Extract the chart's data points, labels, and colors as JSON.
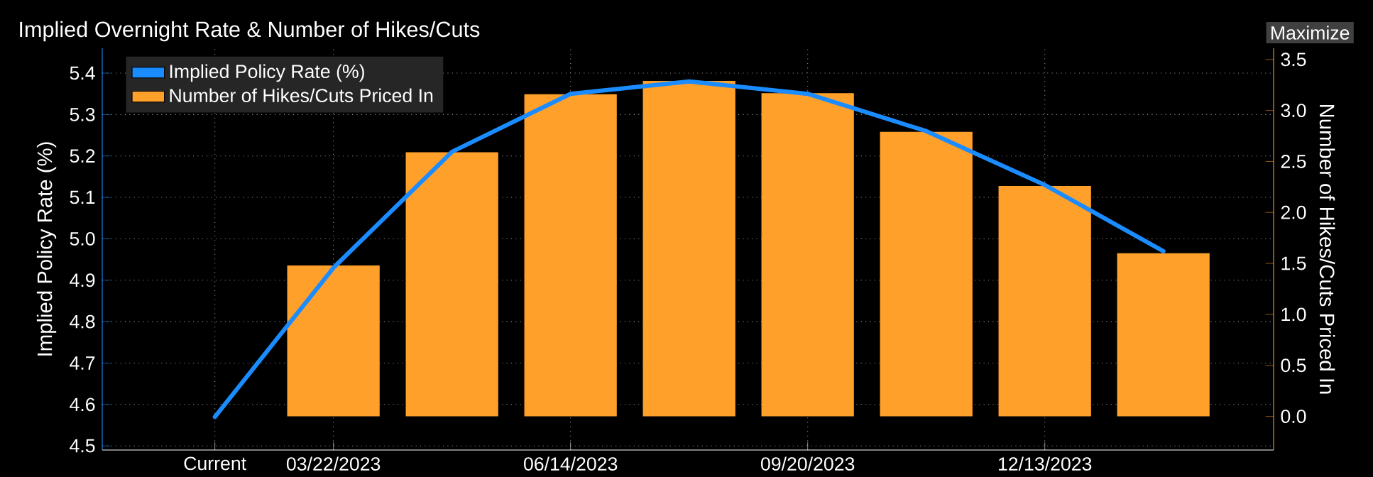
{
  "chart_data": {
    "type": "bar",
    "title": "Implied Overnight Rate & Number of Hikes/Cuts",
    "ylabel": "Implied Policy Rate (%)",
    "y2label": "Number of Hikes/Cuts Priced In",
    "categories": [
      "Current",
      "03/22/2023",
      null,
      "06/14/2023",
      null,
      "09/20/2023",
      null,
      "12/13/2023",
      null
    ],
    "series": [
      {
        "name": "Implied Policy Rate (%)",
        "type": "line",
        "color": "#1a8cff",
        "values": [
          4.57,
          4.93,
          5.21,
          5.35,
          5.38,
          5.35,
          5.26,
          5.13,
          4.97
        ]
      },
      {
        "name": "Number of Hikes/Cuts Priced In",
        "axis": "y2",
        "color": "#ffa02a",
        "values": [
          0.0,
          1.48,
          2.59,
          3.16,
          3.29,
          3.17,
          2.79,
          2.26,
          1.6
        ]
      }
    ],
    "ylim": [
      4.49,
      5.46
    ],
    "yticks": [
      4.5,
      4.6,
      4.7,
      4.8,
      4.9,
      {
        "value": 5.0,
        "label": "5.0"
      },
      5.1,
      5.2,
      5.3,
      5.4
    ],
    "y2lim": [
      -0.33,
      3.61
    ],
    "y2ticks": [
      {
        "value": 0.0,
        "label": "0.0"
      },
      0.5,
      {
        "value": 1.0,
        "label": "1.0"
      },
      1.5,
      {
        "value": 2.0,
        "label": "2.0"
      },
      2.5,
      {
        "value": 3.0,
        "label": "3.0"
      },
      3.5
    ],
    "grid": true,
    "legend": "top left",
    "annotations": [
      "Maximize"
    ]
  }
}
